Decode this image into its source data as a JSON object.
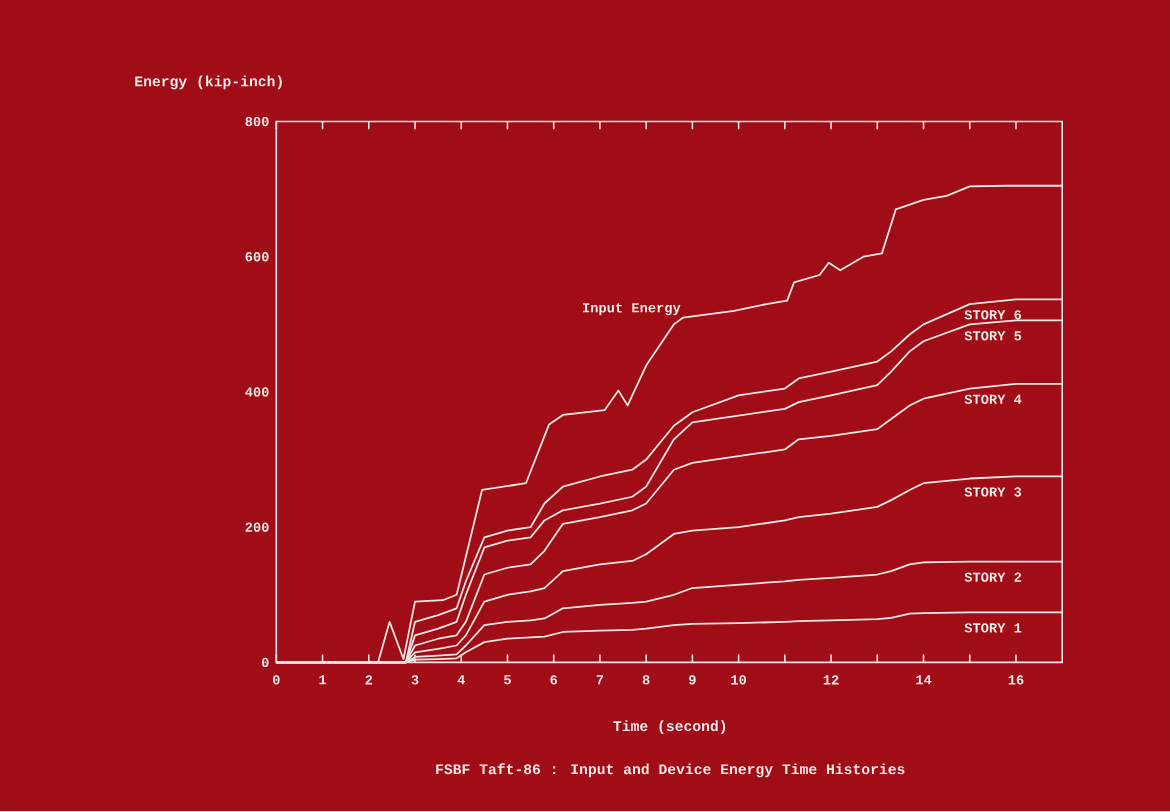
{
  "chart_data": {
    "type": "line",
    "title": "FSBF Taft-86 : Input and Device Energy Time Histories",
    "xlabel": "Time (second)",
    "ylabel": "Energy (kip-inch)",
    "xlim": [
      0,
      17
    ],
    "ylim": [
      0,
      800
    ],
    "xticks": [
      0,
      1,
      2,
      3,
      4,
      5,
      6,
      7,
      8,
      9,
      10,
      {
        "value": 11,
        "label": null
      },
      12,
      {
        "value": 13,
        "label": null
      },
      14,
      {
        "value": 15,
        "label": null
      },
      16
    ],
    "yticks": [
      0,
      200,
      400,
      600,
      800
    ],
    "series": [
      {
        "name": "Input Energy",
        "color": "#f6e8e4",
        "x": [
          0,
          2.2,
          2.45,
          2.75,
          3.0,
          3.6,
          3.9,
          4.45,
          5.4,
          5.9,
          6.2,
          7.1,
          7.4,
          7.6,
          8.0,
          8.6,
          8.8,
          9.9,
          10.6,
          11.05,
          11.2,
          11.75,
          11.95,
          12.2,
          12.7,
          13.1,
          13.4,
          14.0,
          14.5,
          15.0,
          15.8,
          17.0
        ],
        "values": [
          0,
          0,
          60,
          5,
          90,
          92,
          100,
          255,
          265,
          352,
          366,
          373,
          402,
          380,
          439,
          500,
          510,
          520,
          530,
          535,
          562,
          573,
          591,
          580,
          600,
          605,
          670,
          684,
          690,
          704,
          705,
          705
        ]
      },
      {
        "name": "STORY 6",
        "color": "#f6e8e4",
        "x": [
          0,
          2.8,
          3.0,
          3.5,
          3.9,
          4.1,
          4.5,
          5.0,
          5.5,
          5.8,
          6.2,
          7.0,
          7.7,
          8.0,
          8.6,
          9.0,
          10.0,
          11.0,
          11.3,
          12.0,
          13.0,
          13.3,
          13.7,
          14.0,
          15.0,
          16.0,
          17.0
        ],
        "values": [
          0,
          0,
          60,
          70,
          80,
          120,
          185,
          195,
          200,
          235,
          260,
          275,
          285,
          300,
          350,
          370,
          395,
          405,
          420,
          430,
          445,
          460,
          485,
          500,
          530,
          537,
          537
        ]
      },
      {
        "name": "STORY 5",
        "color": "#f6e8e4",
        "x": [
          0,
          2.8,
          3.0,
          3.5,
          3.9,
          4.1,
          4.5,
          5.0,
          5.5,
          5.8,
          6.2,
          7.0,
          7.7,
          8.0,
          8.6,
          9.0,
          10.0,
          11.0,
          11.3,
          12.0,
          13.0,
          13.3,
          13.7,
          14.0,
          15.0,
          16.0,
          17.0
        ],
        "values": [
          0,
          0,
          40,
          50,
          60,
          100,
          170,
          180,
          185,
          210,
          225,
          235,
          245,
          260,
          330,
          355,
          365,
          375,
          385,
          395,
          410,
          430,
          460,
          475,
          500,
          506,
          506
        ]
      },
      {
        "name": "STORY 4",
        "color": "#f6e8e4",
        "x": [
          0,
          2.8,
          3.0,
          3.5,
          3.9,
          4.1,
          4.5,
          5.0,
          5.5,
          5.8,
          6.2,
          7.0,
          7.7,
          8.0,
          8.6,
          9.0,
          10.0,
          11.0,
          11.3,
          12.0,
          13.0,
          13.3,
          13.7,
          14.0,
          15.0,
          16.0,
          17.0
        ],
        "values": [
          0,
          0,
          25,
          35,
          40,
          60,
          130,
          140,
          145,
          165,
          205,
          215,
          225,
          235,
          285,
          295,
          305,
          315,
          330,
          335,
          345,
          360,
          380,
          390,
          405,
          412,
          412
        ]
      },
      {
        "name": "STORY 3",
        "color": "#f6e8e4",
        "x": [
          0,
          2.8,
          3.0,
          3.5,
          3.9,
          4.1,
          4.5,
          5.0,
          5.5,
          5.8,
          6.2,
          7.0,
          7.7,
          8.0,
          8.6,
          9.0,
          10.0,
          11.0,
          11.3,
          12.0,
          13.0,
          13.3,
          13.7,
          14.0,
          15.0,
          16.0,
          17.0
        ],
        "values": [
          0,
          0,
          15,
          20,
          25,
          40,
          90,
          100,
          105,
          110,
          135,
          145,
          150,
          160,
          190,
          195,
          200,
          210,
          215,
          220,
          230,
          240,
          255,
          265,
          272,
          275,
          275
        ]
      },
      {
        "name": "STORY 2",
        "color": "#f6e8e4",
        "x": [
          0,
          2.8,
          3.0,
          3.5,
          3.9,
          4.1,
          4.5,
          5.0,
          5.5,
          5.8,
          6.2,
          7.0,
          7.7,
          8.0,
          8.6,
          9.0,
          10.0,
          11.0,
          11.3,
          12.0,
          13.0,
          13.3,
          13.7,
          14.0,
          15.0,
          16.0,
          17.0
        ],
        "values": [
          0,
          0,
          8,
          10,
          12,
          25,
          55,
          60,
          62,
          65,
          80,
          85,
          88,
          90,
          100,
          110,
          115,
          120,
          122,
          125,
          130,
          135,
          145,
          148,
          149,
          149,
          149
        ]
      },
      {
        "name": "STORY 1",
        "color": "#f6e8e4",
        "x": [
          0,
          2.8,
          3.0,
          3.5,
          3.9,
          4.1,
          4.5,
          5.0,
          5.5,
          5.8,
          6.2,
          7.0,
          7.7,
          8.0,
          8.6,
          9.0,
          10.0,
          11.0,
          11.3,
          12.0,
          13.0,
          13.3,
          13.7,
          14.0,
          15.0,
          16.0,
          17.0
        ],
        "values": [
          0,
          0,
          4,
          5,
          6,
          15,
          30,
          35,
          37,
          38,
          45,
          47,
          48,
          50,
          55,
          57,
          58,
          60,
          61,
          62,
          64,
          66,
          72,
          73,
          74,
          74,
          74
        ]
      }
    ]
  }
}
